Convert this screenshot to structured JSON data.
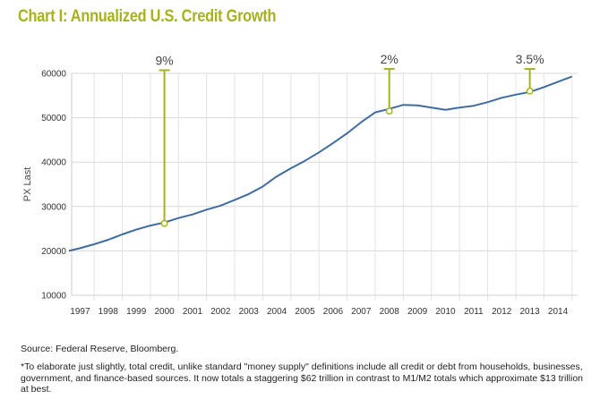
{
  "title": "Chart I: Annualized U.S. Credit Growth",
  "source": "Source: Federal Reserve, Bloomberg.",
  "footnote": "*To elaborate just slightly, total credit, unlike standard \"money supply\" definitions include all credit or debt from households, businesses, government, and finance-based sources. It now totals a staggering $62 trillion in contrast to M1/M2 totals which approximate $13 trillion at best.",
  "colors": {
    "title": "#a7b21a",
    "line": "#3f6c9f",
    "annotation": "#a7b21a"
  },
  "chart_data": {
    "type": "line",
    "title": "Chart I: Annualized U.S. Credit Growth",
    "xlabel": "",
    "ylabel": "PX Last",
    "ylim": [
      10000,
      60000
    ],
    "xlim": [
      1996.7,
      2014.7
    ],
    "yticks": [
      10000,
      20000,
      30000,
      40000,
      50000,
      60000
    ],
    "xticks": [
      "1997",
      "1998",
      "1999",
      "2000",
      "2001",
      "2002",
      "2003",
      "2004",
      "2005",
      "2006",
      "2007",
      "2008",
      "2009",
      "2010",
      "2011",
      "2012",
      "2013",
      "2014"
    ],
    "grid": true,
    "series": [
      {
        "name": "",
        "x": [
          1996.6,
          1997.0,
          1997.5,
          1998.0,
          1998.5,
          1999.0,
          1999.5,
          2000.0,
          2000.5,
          2001.0,
          2001.5,
          2002.0,
          2002.5,
          2003.0,
          2003.5,
          2004.0,
          2004.5,
          2005.0,
          2005.5,
          2006.0,
          2006.5,
          2007.0,
          2007.5,
          2008.0,
          2008.5,
          2009.0,
          2009.5,
          2010.0,
          2010.5,
          2011.0,
          2011.5,
          2012.0,
          2012.5,
          2013.0,
          2013.5,
          2014.0,
          2014.5
        ],
        "y": [
          20000,
          20600,
          21500,
          22500,
          23700,
          24800,
          25700,
          26400,
          27400,
          28200,
          29300,
          30200,
          31500,
          32800,
          34500,
          36800,
          38600,
          40300,
          42200,
          44300,
          46500,
          49000,
          51200,
          52000,
          52900,
          52800,
          52300,
          51800,
          52300,
          52700,
          53500,
          54500,
          55200,
          55800,
          56900,
          58100,
          59300
        ]
      }
    ],
    "annotations": [
      {
        "label": "9%",
        "x": 2000.0,
        "y_from": 26200,
        "y_to": 60700
      },
      {
        "label": "2%",
        "x": 2008.0,
        "y_from": 51500,
        "y_to": 61000
      },
      {
        "label": "3.5%",
        "x": 2013.0,
        "y_from": 56000,
        "y_to": 61000
      }
    ]
  }
}
